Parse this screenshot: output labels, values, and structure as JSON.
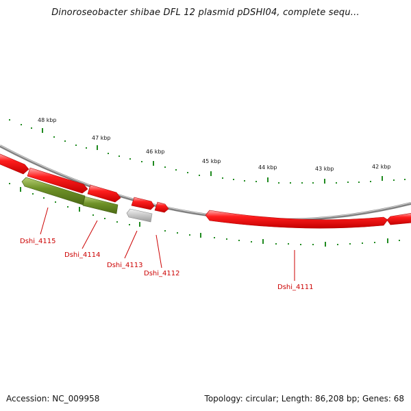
{
  "title": "Dinoroseobacter shibae DFL 12 plasmid pDSHI04, complete sequ...",
  "footer": {
    "accession": "Accession: NC_009958",
    "summary": "Topology: circular; Length: 86,208 bp; Genes: 68"
  },
  "map": {
    "topology": "circular",
    "length_bp": 86208,
    "colors": {
      "backbone": "#8c8c8c",
      "forward_gene": "#ee1111",
      "reverse_gene": "#6a8e23",
      "pseudo_gene": "#bbbbbb",
      "ticks": "#1f8a1f",
      "gene_label": "#cc0000"
    },
    "ruler": [
      {
        "kbp": 48,
        "label": "48 kbp"
      },
      {
        "kbp": 47,
        "label": "47 kbp"
      },
      {
        "kbp": 46,
        "label": "46 kbp"
      },
      {
        "kbp": 45,
        "label": "45 kbp"
      },
      {
        "kbp": 44,
        "label": "44 kbp"
      },
      {
        "kbp": 43,
        "label": "43 kbp"
      },
      {
        "kbp": 42,
        "label": "42 kbp"
      }
    ],
    "genes": [
      {
        "id": "Dshi_4115",
        "label": "Dshi_4115",
        "strand": "reverse",
        "type": "cds"
      },
      {
        "id": "Dshi_4114",
        "label": "Dshi_4114",
        "strand": "reverse",
        "type": "cds"
      },
      {
        "id": "Dshi_4113",
        "label": "Dshi_4113",
        "strand": "reverse",
        "type": "pseudo"
      },
      {
        "id": "Dshi_4112",
        "label": "Dshi_4112",
        "strand": "forward",
        "type": "cds"
      },
      {
        "id": "Dshi_4111",
        "label": "Dshi_4111",
        "strand": "forward",
        "type": "cds"
      }
    ]
  }
}
